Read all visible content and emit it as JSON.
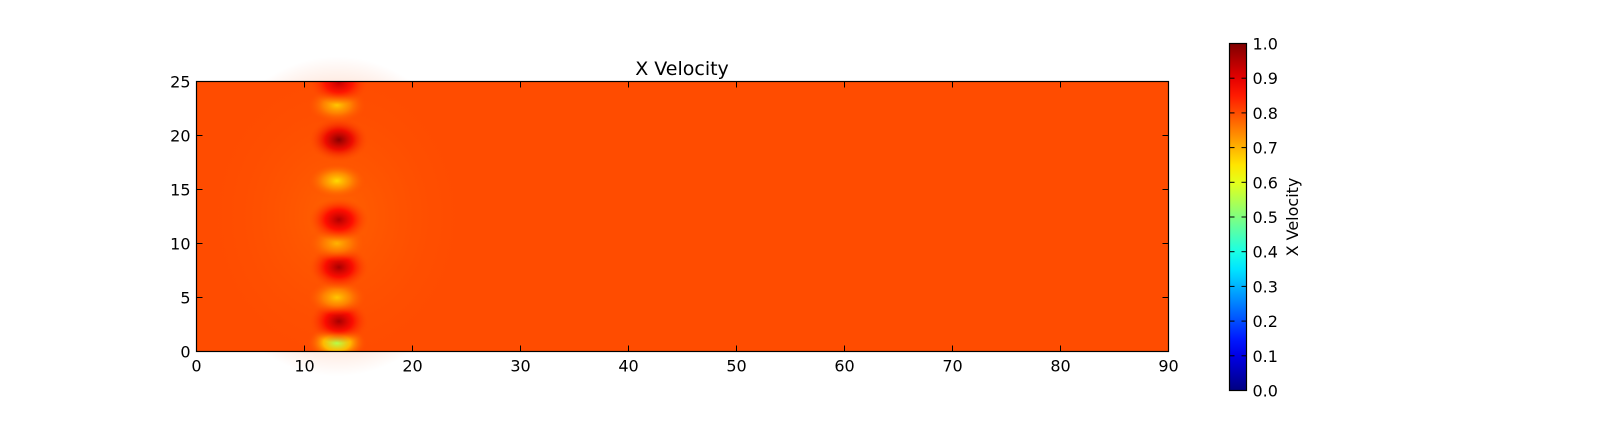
{
  "chart_data": {
    "type": "heatmap",
    "title": "X Velocity",
    "xlabel": "",
    "ylabel": "",
    "xlim": [
      0,
      90
    ],
    "ylim": [
      0,
      25
    ],
    "x_ticks": [
      0,
      10,
      20,
      30,
      40,
      50,
      60,
      70,
      80,
      90
    ],
    "y_ticks": [
      0,
      5,
      10,
      15,
      20,
      25
    ],
    "colormap": "jet",
    "background_value": 0.8,
    "colorbar": {
      "label": "X Velocity",
      "range": [
        0.0,
        1.0
      ],
      "ticks": [
        "0.0",
        "0.1",
        "0.2",
        "0.3",
        "0.4",
        "0.5",
        "0.6",
        "0.7",
        "0.8",
        "0.9",
        "1.0"
      ]
    },
    "grid": false,
    "features": {
      "column_x": 13,
      "blobs": [
        {
          "y": 0.8,
          "value": 0.55
        },
        {
          "y": 2.8,
          "value": 0.96
        },
        {
          "y": 5.0,
          "value": 0.68
        },
        {
          "y": 7.8,
          "value": 0.96
        },
        {
          "y": 10.0,
          "value": 0.7
        },
        {
          "y": 12.2,
          "value": 0.95
        },
        {
          "y": 15.8,
          "value": 0.66
        },
        {
          "y": 19.6,
          "value": 0.99
        },
        {
          "y": 22.8,
          "value": 0.68
        },
        {
          "y": 24.9,
          "value": 0.93
        }
      ]
    }
  }
}
